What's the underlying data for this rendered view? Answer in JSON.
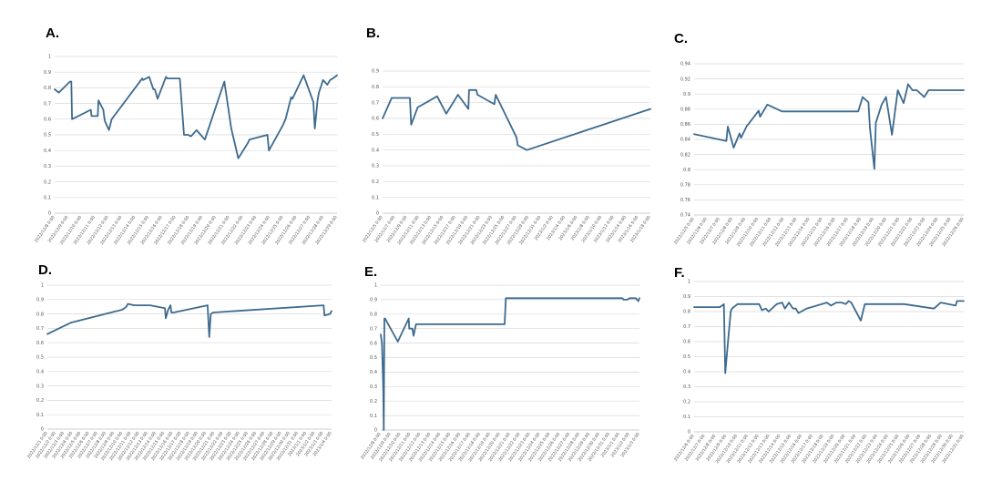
{
  "colors": {
    "series": "#3d6a8e"
  },
  "chart_data": [
    {
      "panel_label": "A.",
      "type": "line",
      "ylim": [
        0,
        1
      ],
      "yticks": [
        "0",
        "0.1",
        "0.2",
        "0.3",
        "0.4",
        "0.5",
        "0.6",
        "0.7",
        "0.8",
        "0.9",
        "1"
      ],
      "xticks": [
        "2022/12/8 0:00",
        "2022/12/9 0:00",
        "2022/12/10 0:00",
        "2022/12/11 0:00",
        "2022/12/12 0:00",
        "2022/12/13 0:00",
        "2022/12/14 0:00",
        "2022/12/15 0:00",
        "2022/12/16 0:00",
        "2022/12/17 0:00",
        "2022/12/18 0:00",
        "2022/12/19 0:00",
        "2022/12/20 0:00",
        "2022/12/21 0:00",
        "2022/12/22 0:00",
        "2022/12/23 0:00",
        "2022/12/24 0:00",
        "2022/12/25 0:00",
        "2022/12/26 0:00",
        "2022/12/27 0:00",
        "2022/12/28 0:00",
        "2022/12/29 0:00"
      ],
      "grid": true,
      "x": [
        0,
        0.3,
        1.1,
        1.2,
        1.25,
        2.6,
        2.65,
        3.1,
        3.15,
        3.5,
        3.6,
        3.9,
        4.1,
        6.3,
        6.35,
        6.8,
        7.1,
        7.2,
        7.4,
        8.0,
        8.1,
        8.3,
        8.45,
        8.7,
        9.0,
        9.3,
        9.6,
        9.8,
        10.2,
        10.3,
        10.8,
        12.2,
        12.7,
        13.2,
        13.9,
        14.0,
        15.3,
        15.4,
        16.4,
        16.6,
        17.0,
        17.1,
        17.9,
        18.6,
        18.7,
        18.9,
        19.0,
        19.3,
        19.6,
        19.8,
        20.0,
        20.3
      ],
      "y": [
        0.79,
        0.77,
        0.84,
        0.84,
        0.6,
        0.66,
        0.62,
        0.62,
        0.72,
        0.66,
        0.59,
        0.53,
        0.6,
        0.86,
        0.85,
        0.87,
        0.79,
        0.79,
        0.73,
        0.87,
        0.86,
        0.86,
        0.86,
        0.86,
        0.86,
        0.5,
        0.5,
        0.49,
        0.53,
        0.52,
        0.47,
        0.84,
        0.54,
        0.35,
        0.45,
        0.47,
        0.5,
        0.4,
        0.56,
        0.6,
        0.74,
        0.73,
        0.88,
        0.71,
        0.54,
        0.72,
        0.77,
        0.85,
        0.82,
        0.85,
        0.86,
        0.88
      ]
    },
    {
      "panel_label": "B.",
      "type": "line",
      "ylim": [
        0,
        0.9
      ],
      "yticks": [
        "0",
        "0.1",
        "0.2",
        "0.3",
        "0.4",
        "0.5",
        "0.6",
        "0.7",
        "0.8",
        "0.9"
      ],
      "xticks": [
        "2022/12/5 0:00",
        "2022/12/7 0:00",
        "2022/12/9 0:00",
        "2022/12/11 0:00",
        "2022/12/13 0:00",
        "2022/12/15 0:00",
        "2022/12/17 0:00",
        "2022/12/19 0:00",
        "2022/12/21 0:00",
        "2022/12/23 0:00",
        "2022/12/25 0:00",
        "2022/12/27 0:00",
        "2022/12/29 0:00",
        "2022/12/31 0:00",
        "2023/1/2 0:00",
        "2023/1/4 0:00",
        "2023/1/6 0:00",
        "2023/1/8 0:00",
        "2023/1/10 0:00",
        "2023/1/12 0:00",
        "2023/1/14 0:00",
        "2023/1/16 0:00",
        "2023/1/18 0:00"
      ],
      "grid": true,
      "x": [
        0,
        0.7,
        2.1,
        2.2,
        2.7,
        4.2,
        4.9,
        5.8,
        6.6,
        6.65,
        7.2,
        7.3,
        8.6,
        8.7,
        10.3,
        10.4,
        11.1,
        20.6
      ],
      "y": [
        0.6,
        0.73,
        0.73,
        0.56,
        0.67,
        0.74,
        0.63,
        0.75,
        0.66,
        0.78,
        0.78,
        0.75,
        0.69,
        0.75,
        0.48,
        0.43,
        0.4,
        0.66
      ]
    },
    {
      "panel_label": "C.",
      "type": "line",
      "ylim": [
        0.74,
        0.94
      ],
      "yticks": [
        "0.74",
        "0.76",
        "0.78",
        "0.8",
        "0.82",
        "0.84",
        "0.86",
        "0.88",
        "0.9",
        "0.92",
        "0.94"
      ],
      "xticks": [
        "2022/12/5 0:00",
        "2022/12/6 0:00",
        "2022/12/7 0:00",
        "2022/12/8 0:00",
        "2022/12/9 0:00",
        "2022/12/10 0:00",
        "2022/12/11 0:00",
        "2022/12/12 0:00",
        "2022/12/13 0:00",
        "2022/12/14 0:00",
        "2022/12/15 0:00",
        "2022/12/16 0:00",
        "2022/12/17 0:00",
        "2022/12/18 0:00",
        "2022/12/19 0:00",
        "2022/12/20 0:00",
        "2022/12/21 0:00",
        "2022/12/22 0:00",
        "2022/12/23 0:00",
        "2022/12/24 0:00",
        "2022/12/25 0:00",
        "2022/12/26 0:00"
      ],
      "grid": true,
      "x": [
        0,
        2.2,
        2.3,
        2.7,
        3.1,
        3.2,
        3.6,
        3.7,
        4.4,
        4.5,
        5.0,
        6.0,
        11.2,
        11.5,
        11.9,
        12.0,
        12.3,
        12.4,
        12.5,
        12.8,
        13.1,
        13.5,
        13.9,
        14.3,
        14.6,
        14.9,
        15.2,
        15.7,
        16.0,
        16.4,
        17.5,
        18.4
      ],
      "y": [
        0.847,
        0.838,
        0.857,
        0.829,
        0.848,
        0.842,
        0.858,
        0.86,
        0.878,
        0.87,
        0.886,
        0.877,
        0.877,
        0.896,
        0.889,
        0.855,
        0.801,
        0.862,
        0.868,
        0.886,
        0.896,
        0.846,
        0.905,
        0.888,
        0.913,
        0.905,
        0.905,
        0.896,
        0.905,
        0.905,
        0.905,
        0.905
      ]
    },
    {
      "panel_label": "D.",
      "type": "line",
      "ylim": [
        0,
        1
      ],
      "yticks": [
        "0",
        "0.1",
        "0.2",
        "0.3",
        "0.4",
        "0.5",
        "0.6",
        "0.7",
        "0.8",
        "0.9",
        "1"
      ],
      "xticks": [
        "2022/12/1 0:00",
        "2022/12/2 0:00",
        "2022/12/3 0:00",
        "2022/12/4 0:00",
        "2022/12/5 0:00",
        "2022/12/6 0:00",
        "2022/12/7 0:00",
        "2022/12/8 0:00",
        "2022/12/9 0:00",
        "2022/12/10 0:00",
        "2022/12/11 0:00",
        "2022/12/12 0:00",
        "2022/12/13 0:00",
        "2022/12/14 0:00",
        "2022/12/15 0:00",
        "2022/12/16 0:00",
        "2022/12/17 0:00",
        "2022/12/18 0:00",
        "2022/12/19 0:00",
        "2022/12/20 0:00",
        "2022/12/21 0:00",
        "2022/12/22 0:00",
        "2022/12/23 0:00",
        "2022/12/24 0:00",
        "2022/12/25 0:00",
        "2022/12/26 0:00",
        "2022/12/27 0:00",
        "2022/12/28 0:00",
        "2022/12/29 0:00",
        "2022/12/30 0:00",
        "2022/12/31 0:00",
        "2023/1/1 0:00",
        "2023/1/2 0:00",
        "2023/1/3 0:00",
        "2023/1/4 0:00"
      ],
      "grid": true,
      "x": [
        0,
        3.0,
        9.5,
        10.0,
        10.2,
        11.0,
        13.0,
        14.9,
        15.0,
        15.3,
        15.6,
        15.7,
        16.0,
        20.3,
        20.5,
        20.7,
        21.0,
        35.0,
        35.1,
        35.8,
        36.0
      ],
      "y": [
        0.66,
        0.74,
        0.83,
        0.85,
        0.87,
        0.86,
        0.86,
        0.84,
        0.77,
        0.83,
        0.86,
        0.81,
        0.81,
        0.86,
        0.64,
        0.8,
        0.81,
        0.86,
        0.79,
        0.8,
        0.82
      ]
    },
    {
      "panel_label": "E.",
      "type": "line",
      "ylim": [
        0,
        1
      ],
      "yticks": [
        "0",
        "0.1",
        "0.2",
        "0.3",
        "0.4",
        "0.5",
        "0.6",
        "0.7",
        "0.8",
        "0.9",
        "1"
      ],
      "xticks": [
        "2022/12/8 0:00",
        "2022/12/9 0:00",
        "2022/12/10 0:00",
        "2022/12/11 0:00",
        "2022/12/12 0:00",
        "2022/12/13 0:00",
        "2022/12/14 0:00",
        "2022/12/15 0:00",
        "2022/12/16 0:00",
        "2022/12/17 0:00",
        "2022/12/18 0:00",
        "2022/12/19 0:00",
        "2022/12/20 0:00",
        "2022/12/21 0:00",
        "2022/12/22 0:00",
        "2022/12/23 0:00",
        "2022/12/24 0:00",
        "2022/12/25 0:00",
        "2022/12/26 0:00",
        "2022/12/27 0:00",
        "2022/12/28 0:00",
        "2022/12/29 0:00",
        "2022/12/30 0:00",
        "2022/12/31 0:00",
        "2023/1/1 0:00",
        "2023/1/2 0:00",
        "2023/1/3 0:00"
      ],
      "grid": true,
      "x": [
        0,
        0.1,
        0.2,
        0.25,
        0.3,
        0.35,
        1.4,
        2.3,
        2.35,
        2.6,
        2.7,
        2.9,
        10.2,
        10.3,
        19.9,
        20.0,
        20.3,
        20.5,
        21.0,
        21.2,
        21.3
      ],
      "y": [
        0.66,
        0.6,
        0.3,
        0.0,
        0.77,
        0.77,
        0.61,
        0.77,
        0.7,
        0.7,
        0.65,
        0.73,
        0.73,
        0.91,
        0.91,
        0.9,
        0.9,
        0.91,
        0.91,
        0.89,
        0.91
      ]
    },
    {
      "panel_label": "F.",
      "type": "line",
      "ylim": [
        0,
        1
      ],
      "yticks": [
        "0",
        "0.1",
        "0.2",
        "0.3",
        "0.4",
        "0.5",
        "0.6",
        "0.7",
        "0.8",
        "0.9",
        "1"
      ],
      "xticks": [
        "2022/12/6 0:00",
        "2022/12/7 0:00",
        "2022/12/8 0:00",
        "2022/12/9 0:00",
        "2022/12/10 0:00",
        "2022/12/11 0:00",
        "2022/12/12 0:00",
        "2022/12/13 0:00",
        "2022/12/14 0:00",
        "2022/12/15 0:00",
        "2022/12/16 0:00",
        "2022/12/17 0:00",
        "2022/12/18 0:00",
        "2022/12/19 0:00",
        "2022/12/20 0:00",
        "2022/12/21 0:00",
        "2022/12/22 0:00",
        "2022/12/23 0:00",
        "2022/12/24 0:00",
        "2022/12/25 0:00",
        "2022/12/26 0:00",
        "2022/12/27 0:00",
        "2022/12/28 0:00",
        "2022/12/29 0:00",
        "2022/12/30 0:00",
        "2022/12/31 0:00"
      ],
      "grid": true,
      "x": [
        0,
        1.9,
        2.2,
        2.3,
        2.5,
        2.7,
        2.8,
        3.2,
        4.8,
        5.0,
        5.3,
        5.5,
        6.1,
        6.5,
        6.7,
        7.0,
        7.3,
        7.5,
        7.7,
        7.9,
        8.3,
        9.8,
        10.1,
        10.5,
        10.9,
        11.2,
        11.4,
        11.6,
        12.3,
        12.6,
        13.0,
        13.1,
        15.5,
        17.7,
        18.2,
        19.3,
        19.4,
        19.9
      ],
      "y": [
        0.83,
        0.83,
        0.85,
        0.39,
        0.6,
        0.8,
        0.82,
        0.85,
        0.85,
        0.81,
        0.82,
        0.8,
        0.85,
        0.86,
        0.82,
        0.86,
        0.82,
        0.82,
        0.79,
        0.8,
        0.82,
        0.86,
        0.84,
        0.86,
        0.86,
        0.85,
        0.87,
        0.86,
        0.74,
        0.85,
        0.85,
        0.85,
        0.85,
        0.82,
        0.86,
        0.84,
        0.87,
        0.87
      ]
    }
  ]
}
